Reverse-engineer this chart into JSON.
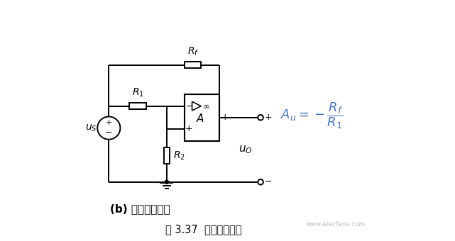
{
  "title": "图 3.37  比例放大电路",
  "subtitle_b": "(b) 反相比例放大",
  "bg_color": "#ffffff",
  "line_color": "#000000",
  "formula_color": "#4472c4",
  "watermark": "www.elecfans.com",
  "fig_width": 6.41,
  "fig_height": 3.4,
  "dpi": 100,
  "Au_label": "$A_u$",
  "Rf_label": "$R_f$",
  "R1_label": "$R_1$"
}
